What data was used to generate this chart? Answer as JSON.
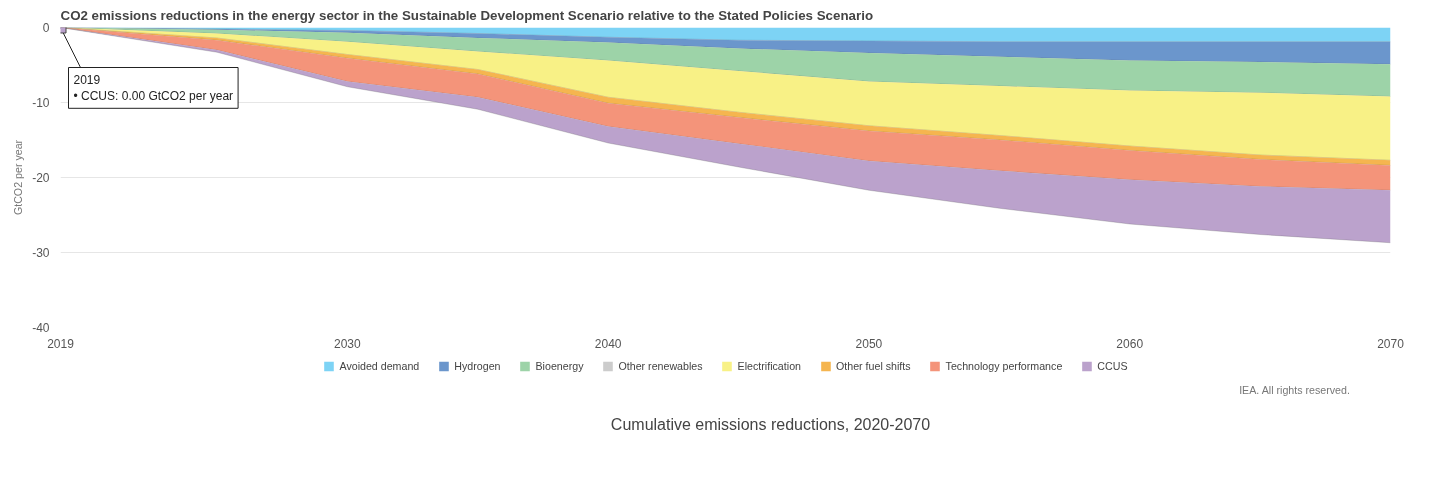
{
  "chart_data": {
    "type": "area",
    "stacked": true,
    "title": "CO2 emissions reductions in the energy sector in the Sustainable Development Scenario relative to the Stated Policies Scenario",
    "ylabel": "GtCO2 per year",
    "x": [
      2019,
      2025,
      2030,
      2035,
      2040,
      2045,
      2050,
      2055,
      2060,
      2065,
      2070
    ],
    "xlim": [
      2019,
      2070
    ],
    "xticks": [
      2019,
      2030,
      2040,
      2050,
      2060,
      2070
    ],
    "ylim": [
      -40,
      0
    ],
    "yticks": [
      -40,
      -30,
      -20,
      -10,
      0
    ],
    "grid": "y",
    "legend": "bottom",
    "series": [
      {
        "name": "Avoided demand",
        "color": "#7dd3f5",
        "values": [
          0,
          -0.2,
          -0.4,
          -0.8,
          -1.3,
          -1.7,
          -1.8,
          -1.9,
          -1.9,
          -1.9,
          -1.9
        ]
      },
      {
        "name": "Hydrogen",
        "color": "#6b96cc",
        "values": [
          0,
          -0.1,
          -0.3,
          -0.6,
          -0.7,
          -1.1,
          -1.6,
          -2.0,
          -2.5,
          -2.7,
          -3.0
        ]
      },
      {
        "name": "Bioenergy",
        "color": "#9dd3a8",
        "values": [
          0,
          -0.5,
          -1.2,
          -1.8,
          -2.4,
          -3.0,
          -3.8,
          -3.9,
          -4.0,
          -4.1,
          -4.3
        ]
      },
      {
        "name": "Other renewables",
        "color": "#cccccc",
        "values": [
          null,
          null,
          null,
          null,
          null,
          null,
          null,
          null,
          null,
          null,
          null
        ]
      },
      {
        "name": "Electrification",
        "color": "#f8f186",
        "values": [
          0,
          -0.6,
          -1.7,
          -2.4,
          -4.9,
          -5.5,
          -5.9,
          -6.6,
          -7.4,
          -8.3,
          -8.5
        ]
      },
      {
        "name": "Other fuel shifts",
        "color": "#f5b54f",
        "values": [
          0,
          -0.3,
          -0.5,
          -0.6,
          -0.8,
          -0.7,
          -0.7,
          -0.6,
          -0.6,
          -0.6,
          -0.7
        ]
      },
      {
        "name": "Technology performance",
        "color": "#f4947a",
        "values": [
          0,
          -1.3,
          -3.1,
          -3.1,
          -3.1,
          -3.5,
          -4.0,
          -4.1,
          -3.9,
          -3.6,
          -3.3
        ]
      },
      {
        "name": "CCUS",
        "color": "#bba2cc",
        "values": [
          0,
          -0.3,
          -0.7,
          -1.6,
          -2.2,
          -3.1,
          -3.9,
          -5.0,
          -5.9,
          -6.4,
          -7.0
        ]
      }
    ],
    "annotations": [
      {
        "text": "2019\n• CCUS: 0.00 GtCO2 per year",
        "x": 2019,
        "y": 0
      },
      "IEA. All rights reserved.",
      "Cumulative emissions reductions, 2020-2070"
    ]
  }
}
